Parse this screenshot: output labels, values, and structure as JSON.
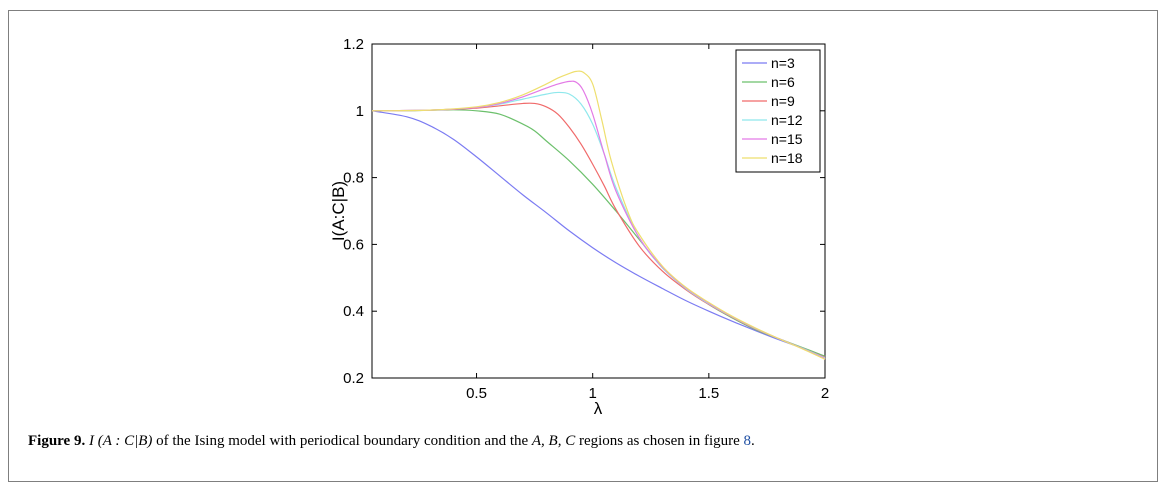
{
  "chart_data": {
    "type": "line",
    "xlabel": "λ",
    "ylabel": "I(A:C|B)",
    "xlim": [
      0.05,
      2
    ],
    "ylim": [
      0.2,
      1.2
    ],
    "xticks": [
      "0.5",
      "1",
      "1.5",
      "2"
    ],
    "yticks": [
      "0.2",
      "0.4",
      "0.6",
      "0.8",
      "1",
      "1.2"
    ],
    "legend_position": "top-right",
    "series": [
      {
        "name": "n=3",
        "color": "#7b7bf2",
        "x": [
          0.05,
          0.2,
          0.3,
          0.4,
          0.5,
          0.6,
          0.7,
          0.8,
          0.9,
          1.0,
          1.1,
          1.2,
          1.3,
          1.4,
          1.5,
          1.6,
          1.7,
          1.8,
          1.9,
          2.0
        ],
        "y": [
          1.0,
          0.982,
          0.955,
          0.915,
          0.862,
          0.805,
          0.748,
          0.695,
          0.64,
          0.59,
          0.545,
          0.505,
          0.468,
          0.432,
          0.4,
          0.37,
          0.342,
          0.315,
          0.29,
          0.265
        ]
      },
      {
        "name": "n=6",
        "color": "#6cc06c",
        "x": [
          0.05,
          0.2,
          0.4,
          0.5,
          0.6,
          0.7,
          0.75,
          0.8,
          0.9,
          1.0,
          1.1,
          1.2,
          1.3,
          1.4,
          1.5,
          1.6,
          1.7,
          1.8,
          1.9,
          2.0
        ],
        "y": [
          1.0,
          1.0,
          1.003,
          1.0,
          0.99,
          0.96,
          0.94,
          0.91,
          0.85,
          0.78,
          0.7,
          0.615,
          0.53,
          0.47,
          0.42,
          0.38,
          0.345,
          0.318,
          0.292,
          0.265
        ]
      },
      {
        "name": "n=9",
        "color": "#f06a6a",
        "x": [
          0.05,
          0.3,
          0.5,
          0.6,
          0.7,
          0.75,
          0.8,
          0.85,
          0.9,
          0.95,
          1.0,
          1.05,
          1.1,
          1.2,
          1.3,
          1.4,
          1.5,
          1.6,
          1.7,
          1.8,
          1.9,
          2.0
        ],
        "y": [
          1.0,
          1.002,
          1.008,
          1.015,
          1.022,
          1.022,
          1.012,
          0.99,
          0.95,
          0.9,
          0.84,
          0.775,
          0.705,
          0.595,
          0.52,
          0.465,
          0.42,
          0.382,
          0.347,
          0.318,
          0.29,
          0.262
        ]
      },
      {
        "name": "n=12",
        "color": "#8fe8ec",
        "x": [
          0.05,
          0.3,
          0.5,
          0.6,
          0.7,
          0.8,
          0.85,
          0.9,
          0.95,
          1.0,
          1.05,
          1.1,
          1.2,
          1.3,
          1.4,
          1.5,
          1.6,
          1.7,
          1.8,
          1.9,
          2.0
        ],
        "y": [
          1.0,
          1.002,
          1.01,
          1.02,
          1.035,
          1.05,
          1.055,
          1.05,
          1.02,
          0.96,
          0.87,
          0.77,
          0.62,
          0.53,
          0.468,
          0.422,
          0.383,
          0.348,
          0.318,
          0.29,
          0.26
        ]
      },
      {
        "name": "n=15",
        "color": "#e37ae6",
        "x": [
          0.05,
          0.3,
          0.5,
          0.6,
          0.7,
          0.8,
          0.85,
          0.9,
          0.93,
          0.96,
          1.0,
          1.05,
          1.1,
          1.2,
          1.3,
          1.4,
          1.5,
          1.6,
          1.7,
          1.8,
          1.9,
          2.0
        ],
        "y": [
          1.0,
          1.002,
          1.01,
          1.022,
          1.042,
          1.068,
          1.08,
          1.088,
          1.085,
          1.06,
          0.99,
          0.87,
          0.76,
          0.62,
          0.532,
          0.47,
          0.424,
          0.384,
          0.349,
          0.318,
          0.289,
          0.258
        ]
      },
      {
        "name": "n=18",
        "color": "#eedf6e",
        "x": [
          0.05,
          0.3,
          0.5,
          0.6,
          0.7,
          0.8,
          0.85,
          0.9,
          0.93,
          0.96,
          1.0,
          1.04,
          1.08,
          1.15,
          1.2,
          1.3,
          1.4,
          1.5,
          1.6,
          1.7,
          1.8,
          1.9,
          2.0
        ],
        "y": [
          1.0,
          1.002,
          1.012,
          1.025,
          1.048,
          1.08,
          1.098,
          1.112,
          1.118,
          1.115,
          1.08,
          0.97,
          0.85,
          0.7,
          0.63,
          0.535,
          0.472,
          0.426,
          0.385,
          0.35,
          0.318,
          0.288,
          0.256
        ]
      }
    ]
  },
  "caption": {
    "label": "Figure 9.",
    "expr": "I (A : C|B)",
    "text_1": " of the Ising model with periodical boundary condition and the ",
    "regions": "A, B, C",
    "text_2": " regions as chosen in figure ",
    "ref": "8",
    "end": "."
  }
}
